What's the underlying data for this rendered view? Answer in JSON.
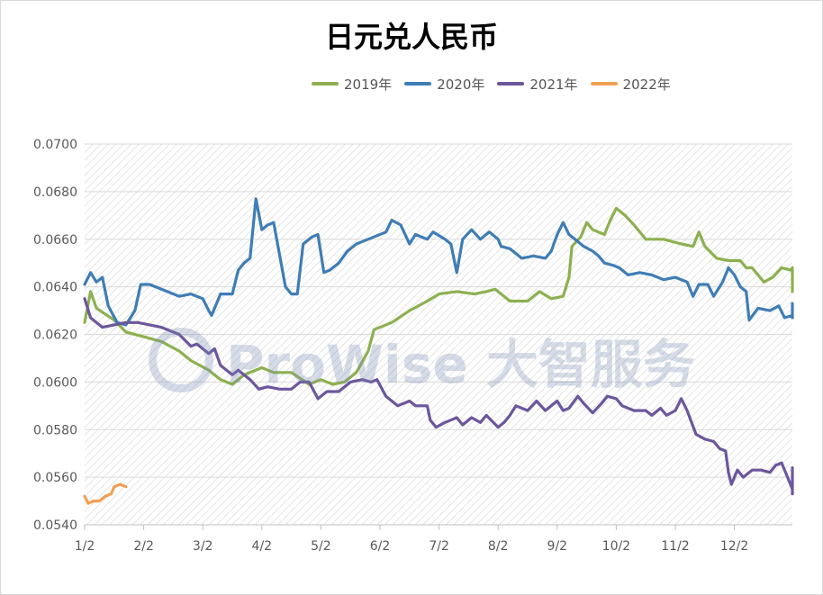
{
  "chart_data": {
    "type": "line",
    "title": "日元兑人民币",
    "categories": [
      "1/2",
      "2/2",
      "3/2",
      "4/2",
      "5/2",
      "6/2",
      "7/2",
      "8/2",
      "9/2",
      "10/2",
      "11/2",
      "12/2"
    ],
    "ylim": [
      0.054,
      0.07
    ],
    "yticks": [
      "0.0700",
      "0.0680",
      "0.0660",
      "0.0640",
      "0.0620",
      "0.0600",
      "0.0580",
      "0.0560",
      "0.0540"
    ],
    "grid": true,
    "legend_position": "top-right",
    "series": [
      {
        "name": "2019年",
        "color": "#8db050",
        "points": [
          [
            0.0,
            0.0625
          ],
          [
            0.1,
            0.0638
          ],
          [
            0.2,
            0.0631
          ],
          [
            0.5,
            0.0626
          ],
          [
            0.7,
            0.0621
          ],
          [
            1.0,
            0.0619
          ],
          [
            1.3,
            0.0617
          ],
          [
            1.6,
            0.0613
          ],
          [
            1.8,
            0.0609
          ],
          [
            2.1,
            0.0605
          ],
          [
            2.3,
            0.0601
          ],
          [
            2.5,
            0.0599
          ],
          [
            2.7,
            0.0603
          ],
          [
            3.0,
            0.0606
          ],
          [
            3.2,
            0.0604
          ],
          [
            3.5,
            0.0604
          ],
          [
            3.8,
            0.0599
          ],
          [
            4.0,
            0.0601
          ],
          [
            4.2,
            0.0599
          ],
          [
            4.4,
            0.06
          ],
          [
            4.6,
            0.0604
          ],
          [
            4.8,
            0.0613
          ],
          [
            4.9,
            0.0622
          ],
          [
            5.2,
            0.0625
          ],
          [
            5.5,
            0.063
          ],
          [
            5.8,
            0.0634
          ],
          [
            6.0,
            0.0637
          ],
          [
            6.3,
            0.0638
          ],
          [
            6.6,
            0.0637
          ],
          [
            6.8,
            0.0638
          ],
          [
            6.95,
            0.0639
          ],
          [
            7.1,
            0.0636
          ],
          [
            7.2,
            0.0634
          ],
          [
            7.5,
            0.0634
          ],
          [
            7.7,
            0.0638
          ],
          [
            7.9,
            0.0635
          ],
          [
            8.1,
            0.0636
          ],
          [
            8.2,
            0.0644
          ],
          [
            8.25,
            0.0657
          ],
          [
            8.4,
            0.0661
          ],
          [
            8.5,
            0.0667
          ],
          [
            8.6,
            0.0664
          ],
          [
            8.8,
            0.0662
          ],
          [
            8.9,
            0.0668
          ],
          [
            9.0,
            0.0673
          ],
          [
            9.15,
            0.067
          ],
          [
            9.3,
            0.0666
          ],
          [
            9.5,
            0.066
          ],
          [
            9.8,
            0.066
          ],
          [
            10.1,
            0.0658
          ],
          [
            10.3,
            0.0657
          ],
          [
            10.4,
            0.0663
          ],
          [
            10.5,
            0.0657
          ],
          [
            10.7,
            0.0652
          ],
          [
            10.9,
            0.0651
          ],
          [
            11.1,
            0.0651
          ],
          [
            11.2,
            0.0648
          ],
          [
            11.3,
            0.0648
          ],
          [
            11.5,
            0.0642
          ],
          [
            11.65,
            0.0644
          ],
          [
            11.8,
            0.0648
          ],
          [
            11.95,
            0.0647
          ],
          [
            12.15,
            0.0648
          ],
          [
            12.25,
            0.0646
          ],
          [
            12.4,
            0.064
          ],
          [
            12.6,
            0.064
          ],
          [
            12.8,
            0.0642
          ],
          [
            12.9,
            0.0638
          ]
        ]
      },
      {
        "name": "2020年",
        "color": "#3f7db5",
        "points": [
          [
            0.0,
            0.0641
          ],
          [
            0.1,
            0.0646
          ],
          [
            0.2,
            0.0642
          ],
          [
            0.3,
            0.0644
          ],
          [
            0.4,
            0.0632
          ],
          [
            0.55,
            0.0625
          ],
          [
            0.7,
            0.0624
          ],
          [
            0.85,
            0.063
          ],
          [
            0.95,
            0.0641
          ],
          [
            1.1,
            0.0641
          ],
          [
            1.4,
            0.0638
          ],
          [
            1.6,
            0.0636
          ],
          [
            1.8,
            0.0637
          ],
          [
            2.0,
            0.0635
          ],
          [
            2.1,
            0.063
          ],
          [
            2.15,
            0.0628
          ],
          [
            2.3,
            0.0637
          ],
          [
            2.5,
            0.0637
          ],
          [
            2.6,
            0.0647
          ],
          [
            2.7,
            0.065
          ],
          [
            2.8,
            0.0652
          ],
          [
            2.9,
            0.0677
          ],
          [
            3.0,
            0.0664
          ],
          [
            3.1,
            0.0666
          ],
          [
            3.2,
            0.0667
          ],
          [
            3.4,
            0.064
          ],
          [
            3.5,
            0.0637
          ],
          [
            3.6,
            0.0637
          ],
          [
            3.7,
            0.0658
          ],
          [
            3.85,
            0.0661
          ],
          [
            3.95,
            0.0662
          ],
          [
            4.05,
            0.0646
          ],
          [
            4.15,
            0.0647
          ],
          [
            4.3,
            0.065
          ],
          [
            4.45,
            0.0655
          ],
          [
            4.6,
            0.0658
          ],
          [
            4.8,
            0.066
          ],
          [
            5.1,
            0.0663
          ],
          [
            5.2,
            0.0668
          ],
          [
            5.35,
            0.0666
          ],
          [
            5.5,
            0.0658
          ],
          [
            5.6,
            0.0662
          ],
          [
            5.8,
            0.066
          ],
          [
            5.9,
            0.0663
          ],
          [
            6.1,
            0.066
          ],
          [
            6.2,
            0.0658
          ],
          [
            6.3,
            0.0646
          ],
          [
            6.4,
            0.066
          ],
          [
            6.55,
            0.0664
          ],
          [
            6.7,
            0.066
          ],
          [
            6.85,
            0.0663
          ],
          [
            7.0,
            0.066
          ],
          [
            7.05,
            0.0657
          ],
          [
            7.2,
            0.0656
          ],
          [
            7.4,
            0.0652
          ],
          [
            7.6,
            0.0653
          ],
          [
            7.8,
            0.0652
          ],
          [
            7.9,
            0.0655
          ],
          [
            8.0,
            0.0662
          ],
          [
            8.1,
            0.0667
          ],
          [
            8.2,
            0.0662
          ],
          [
            8.3,
            0.066
          ],
          [
            8.45,
            0.0657
          ],
          [
            8.6,
            0.0655
          ],
          [
            8.7,
            0.0653
          ],
          [
            8.8,
            0.065
          ],
          [
            8.95,
            0.0649
          ],
          [
            9.05,
            0.0648
          ],
          [
            9.2,
            0.0645
          ],
          [
            9.4,
            0.0646
          ],
          [
            9.6,
            0.0645
          ],
          [
            9.8,
            0.0643
          ],
          [
            10.0,
            0.0644
          ],
          [
            10.2,
            0.0642
          ],
          [
            10.3,
            0.0636
          ],
          [
            10.4,
            0.0641
          ],
          [
            10.55,
            0.0641
          ],
          [
            10.65,
            0.0636
          ],
          [
            10.8,
            0.0642
          ],
          [
            10.9,
            0.0648
          ],
          [
            11.0,
            0.0645
          ],
          [
            11.1,
            0.064
          ],
          [
            11.2,
            0.0638
          ],
          [
            11.25,
            0.0626
          ],
          [
            11.4,
            0.0631
          ],
          [
            11.6,
            0.063
          ],
          [
            11.75,
            0.0632
          ],
          [
            11.85,
            0.0627
          ],
          [
            12.0,
            0.0628
          ],
          [
            12.2,
            0.0627
          ],
          [
            12.35,
            0.063
          ],
          [
            12.5,
            0.0633
          ],
          [
            12.65,
            0.0631
          ],
          [
            12.8,
            0.063
          ],
          [
            12.9,
            0.0632
          ]
        ]
      },
      {
        "name": "2021年",
        "color": "#6b579c",
        "points": [
          [
            0.0,
            0.0635
          ],
          [
            0.1,
            0.0627
          ],
          [
            0.2,
            0.0625
          ],
          [
            0.3,
            0.0623
          ],
          [
            0.5,
            0.0624
          ],
          [
            0.7,
            0.0625
          ],
          [
            0.9,
            0.0625
          ],
          [
            1.1,
            0.0624
          ],
          [
            1.3,
            0.0623
          ],
          [
            1.6,
            0.062
          ],
          [
            1.8,
            0.0615
          ],
          [
            1.9,
            0.0616
          ],
          [
            2.1,
            0.0612
          ],
          [
            2.2,
            0.0614
          ],
          [
            2.3,
            0.0607
          ],
          [
            2.5,
            0.0603
          ],
          [
            2.6,
            0.0605
          ],
          [
            2.8,
            0.0601
          ],
          [
            2.95,
            0.0597
          ],
          [
            3.1,
            0.0598
          ],
          [
            3.3,
            0.0597
          ],
          [
            3.5,
            0.0597
          ],
          [
            3.65,
            0.06
          ],
          [
            3.8,
            0.06
          ],
          [
            3.95,
            0.0593
          ],
          [
            4.1,
            0.0596
          ],
          [
            4.3,
            0.0596
          ],
          [
            4.5,
            0.06
          ],
          [
            4.7,
            0.0601
          ],
          [
            4.85,
            0.06
          ],
          [
            4.95,
            0.0601
          ],
          [
            5.1,
            0.0594
          ],
          [
            5.3,
            0.059
          ],
          [
            5.5,
            0.0592
          ],
          [
            5.6,
            0.059
          ],
          [
            5.8,
            0.059
          ],
          [
            5.85,
            0.0584
          ],
          [
            5.95,
            0.0581
          ],
          [
            6.1,
            0.0583
          ],
          [
            6.2,
            0.0584
          ],
          [
            6.3,
            0.0585
          ],
          [
            6.4,
            0.0582
          ],
          [
            6.55,
            0.0585
          ],
          [
            6.7,
            0.0583
          ],
          [
            6.8,
            0.0586
          ],
          [
            7.0,
            0.0581
          ],
          [
            7.1,
            0.0583
          ],
          [
            7.2,
            0.0586
          ],
          [
            7.3,
            0.059
          ],
          [
            7.5,
            0.0588
          ],
          [
            7.65,
            0.0592
          ],
          [
            7.8,
            0.0588
          ],
          [
            7.9,
            0.059
          ],
          [
            8.0,
            0.0592
          ],
          [
            8.1,
            0.0588
          ],
          [
            8.2,
            0.0589
          ],
          [
            8.35,
            0.0594
          ],
          [
            8.45,
            0.0591
          ],
          [
            8.6,
            0.0587
          ],
          [
            8.75,
            0.0591
          ],
          [
            8.85,
            0.0594
          ],
          [
            9.0,
            0.0593
          ],
          [
            9.1,
            0.059
          ],
          [
            9.3,
            0.0588
          ],
          [
            9.5,
            0.0588
          ],
          [
            9.6,
            0.0586
          ],
          [
            9.75,
            0.0589
          ],
          [
            9.85,
            0.0586
          ],
          [
            10.0,
            0.0588
          ],
          [
            10.1,
            0.0593
          ],
          [
            10.2,
            0.0588
          ],
          [
            10.35,
            0.0578
          ],
          [
            10.5,
            0.0576
          ],
          [
            10.65,
            0.0575
          ],
          [
            10.75,
            0.0572
          ],
          [
            10.85,
            0.0571
          ],
          [
            10.9,
            0.0562
          ],
          [
            10.95,
            0.0557
          ],
          [
            11.05,
            0.0563
          ],
          [
            11.15,
            0.056
          ],
          [
            11.3,
            0.0563
          ],
          [
            11.45,
            0.0563
          ],
          [
            11.6,
            0.0562
          ],
          [
            11.7,
            0.0565
          ],
          [
            11.8,
            0.0566
          ],
          [
            11.95,
            0.0557
          ],
          [
            12.1,
            0.0555
          ],
          [
            12.2,
            0.0558
          ],
          [
            12.35,
            0.0563
          ],
          [
            12.5,
            0.0564
          ],
          [
            12.7,
            0.0562
          ],
          [
            12.85,
            0.0558
          ],
          [
            13.0,
            0.0563
          ],
          [
            13.1,
            0.0561
          ],
          [
            13.25,
            0.0558
          ],
          [
            13.4,
            0.0556
          ],
          [
            13.55,
            0.0557
          ],
          [
            13.7,
            0.0554
          ],
          [
            13.85,
            0.0555
          ],
          [
            14.0,
            0.0553
          ],
          [
            14.2,
            0.0554
          ],
          [
            14.4,
            0.0554
          ]
        ]
      },
      {
        "name": "2022年",
        "color": "#f0a055",
        "points": [
          [
            0.0,
            0.0552
          ],
          [
            0.06,
            0.0549
          ],
          [
            0.15,
            0.055
          ],
          [
            0.25,
            0.055
          ],
          [
            0.35,
            0.0552
          ],
          [
            0.45,
            0.0553
          ],
          [
            0.5,
            0.0556
          ],
          [
            0.6,
            0.0557
          ],
          [
            0.7,
            0.0556
          ]
        ]
      }
    ]
  },
  "watermark": "ProWise 大智服务"
}
